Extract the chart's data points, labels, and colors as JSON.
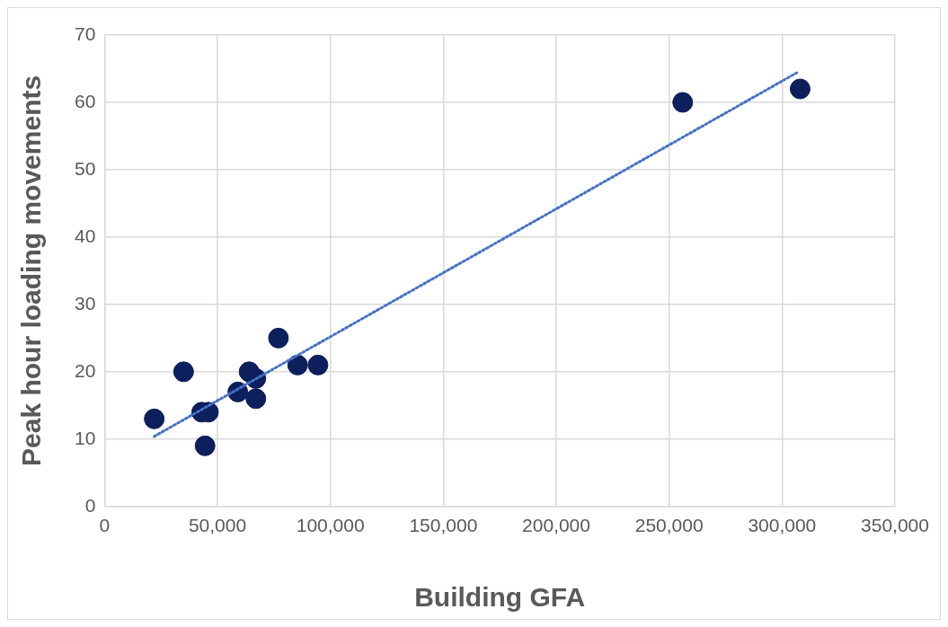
{
  "chart_data": {
    "type": "scatter",
    "xlabel": "Building GFA",
    "ylabel": "Peak hour loading movements",
    "xlim": [
      0,
      350000
    ],
    "xticks": [
      0,
      {
        "value": 50000,
        "label": "50,000"
      },
      {
        "value": 100000,
        "label": "100,000"
      },
      {
        "value": 150000,
        "label": "150,000"
      },
      {
        "value": 200000,
        "label": "200,000"
      },
      {
        "value": 250000,
        "label": "250,000"
      },
      {
        "value": 300000,
        "label": "300,000"
      },
      {
        "value": 350000,
        "label": "350,000"
      }
    ],
    "ylim": [
      0,
      70
    ],
    "yticks": [
      0,
      10,
      20,
      30,
      40,
      50,
      60,
      70
    ],
    "grid": true,
    "marker": "circle",
    "series": [
      {
        "color": "#0d1f5c",
        "x": [
          22000,
          35000,
          43000,
          46000,
          44500,
          59000,
          64000,
          67000,
          67000,
          77000,
          85500,
          94500,
          256000,
          308000
        ],
        "values": [
          13,
          20,
          14,
          14,
          9,
          17,
          20,
          19,
          16,
          25,
          21,
          21,
          60,
          62
        ]
      },
      {
        "type": "line",
        "color": "#4472c4",
        "line_style": "dotted",
        "marker": "none",
        "x": [
          22000,
          306500
        ],
        "values": [
          10.4,
          64.4
        ]
      }
    ]
  }
}
